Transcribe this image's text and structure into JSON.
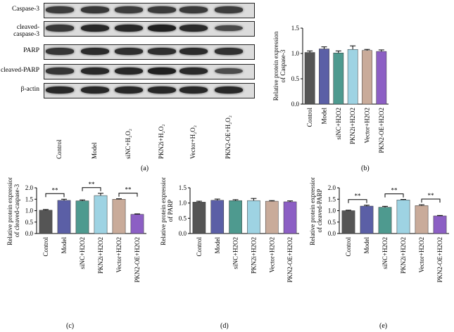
{
  "panels": {
    "a": "(a)",
    "b": "(b)",
    "c": "(c)",
    "d": "(d)",
    "e": "(e)"
  },
  "blot": {
    "rows": [
      "Caspase-3",
      "cleaved-caspase-3",
      "PARP",
      "cleaved-PARP",
      "β-actin"
    ],
    "lanes": [
      "Control",
      "Model",
      "siNC+H₂O₂",
      "PKN2i+H₂O₂",
      "Vector+H₂O₂",
      "PKN2-OE+H₂O₂"
    ]
  },
  "colors": [
    "#555555",
    "#5b5fa6",
    "#4e9a8f",
    "#9ed3e3",
    "#c9ab9a",
    "#8c5fc4"
  ],
  "chart_data": [
    {
      "id": "b",
      "type": "bar",
      "categories": [
        "Control",
        "Model",
        "siNC+H2O2",
        "PKN2i+H2O2",
        "Vector+H2O2",
        "PKN2-OE+H2O2"
      ],
      "values": [
        1.02,
        1.09,
        1.01,
        1.08,
        1.06,
        1.04
      ],
      "errors": [
        0.03,
        0.04,
        0.04,
        0.07,
        0.02,
        0.03
      ],
      "ylabel": "Relative protein expression\nof Caspase-3",
      "ylim": [
        0,
        1.5
      ],
      "yticks": [
        "0.0",
        "0.5",
        "1.0",
        "1.5"
      ],
      "significance": []
    },
    {
      "id": "c",
      "type": "bar",
      "categories": [
        "Control",
        "Model",
        "siNC+H2O2",
        "PKN2i+H2O2",
        "Vector+H2O2",
        "PKN2-OE+H2O2"
      ],
      "values": [
        1.02,
        1.45,
        1.43,
        1.66,
        1.5,
        0.84
      ],
      "errors": [
        0.03,
        0.05,
        0.04,
        0.1,
        0.02,
        0.02
      ],
      "ylabel": "Relative protein expression\nof cleaved-caspase-3",
      "ylim": [
        0,
        2.0
      ],
      "yticks": [
        "0.0",
        "0.5",
        "1.0",
        "1.5",
        "2.0"
      ],
      "significance": [
        {
          "from": 0,
          "to": 1,
          "label": "**"
        },
        {
          "from": 2,
          "to": 3,
          "label": "**"
        },
        {
          "from": 4,
          "to": 5,
          "label": "**"
        }
      ]
    },
    {
      "id": "d",
      "type": "bar",
      "categories": [
        "Control",
        "Model",
        "siNC+H2O2",
        "PKN2i+H2O2",
        "Vector+H2O2",
        "PKN2-OE+H2O2"
      ],
      "values": [
        1.03,
        1.09,
        1.08,
        1.08,
        1.06,
        1.04
      ],
      "errors": [
        0.03,
        0.04,
        0.03,
        0.07,
        0.02,
        0.03
      ],
      "ylabel": "Relative protein expression\nof PARP",
      "ylim": [
        0,
        1.5
      ],
      "yticks": [
        "0.0",
        "0.5",
        "1.0",
        "1.5"
      ],
      "significance": []
    },
    {
      "id": "e",
      "type": "bar",
      "categories": [
        "Control",
        "Model",
        "siNC+H2O2",
        "PKN2i+H2O2",
        "Vector+H2O2",
        "PKN2-OE+H2O2"
      ],
      "values": [
        1.0,
        1.2,
        1.15,
        1.47,
        1.22,
        0.77
      ],
      "errors": [
        0.02,
        0.04,
        0.04,
        0.02,
        0.04,
        0.02
      ],
      "ylabel": "Relative protein expression\nof cleaved-PARP",
      "ylim": [
        0,
        2.0
      ],
      "yticks": [
        "0.0",
        "0.5",
        "1.0",
        "1.5",
        "2.0"
      ],
      "significance": [
        {
          "from": 0,
          "to": 1,
          "label": "**"
        },
        {
          "from": 2,
          "to": 3,
          "label": "**"
        },
        {
          "from": 4,
          "to": 5,
          "label": "**"
        }
      ]
    }
  ]
}
